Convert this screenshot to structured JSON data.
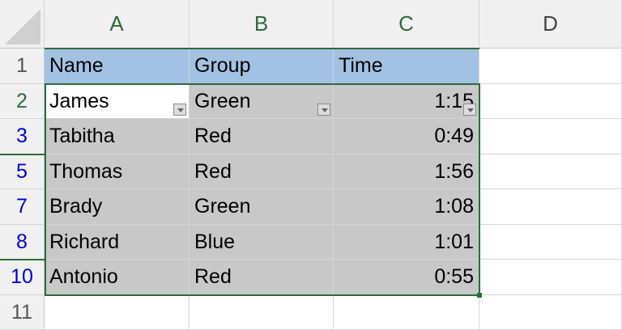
{
  "columns": [
    "A",
    "B",
    "C",
    "D"
  ],
  "rows": [
    {
      "num": "1",
      "state": "normal",
      "cells": [
        "Name",
        "Group",
        "Time"
      ],
      "header": true
    },
    {
      "num": "2",
      "state": "active",
      "cells": [
        "James",
        "Green",
        "1:15"
      ]
    },
    {
      "num": "3",
      "state": "filtered",
      "cells": [
        "Tabitha",
        "Red",
        "0:49"
      ]
    },
    {
      "num": "5",
      "state": "filtered",
      "cells": [
        "Thomas",
        "Red",
        "1:56"
      ]
    },
    {
      "num": "7",
      "state": "filtered",
      "cells": [
        "Brady",
        "Green",
        "1:08"
      ]
    },
    {
      "num": "8",
      "state": "filtered",
      "cells": [
        "Richard",
        "Blue",
        "1:01"
      ]
    },
    {
      "num": "10",
      "state": "filtered",
      "cells": [
        "Antonio",
        "Red",
        "0:55"
      ]
    },
    {
      "num": "11",
      "state": "normal",
      "cells": [
        "",
        "",
        ""
      ]
    }
  ],
  "colors": {
    "header_fill": "#a3c2e3",
    "selection_fill": "#c8c8c8",
    "selection_border": "#2e6b3c",
    "filtered_row_number": "#0000cc"
  }
}
